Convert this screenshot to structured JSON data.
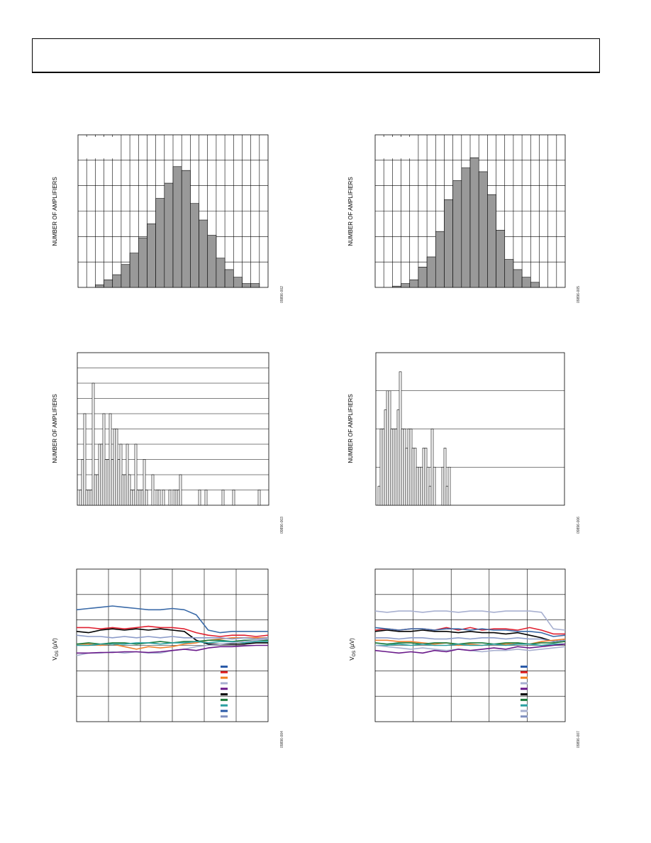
{
  "figures": {
    "hist_a": {
      "ylabel": "NUMBER OF AMPLIFIERS",
      "figure_id": "09896-002",
      "chart_data": {
        "type": "bar",
        "xlabel": "",
        "ylabel": "NUMBER OF AMPLIFIERS",
        "ylim": [
          0,
          6
        ],
        "values": [
          0,
          0.1,
          0.3,
          0.5,
          0.9,
          1.35,
          1.95,
          2.5,
          3.5,
          4.1,
          4.75,
          4.6,
          3.3,
          2.65,
          2.05,
          1.15,
          0.7,
          0.4,
          0.15,
          0.15,
          0
        ]
      }
    },
    "hist_b": {
      "ylabel": "NUMBER OF AMPLIFIERS",
      "figure_id": "09896-005",
      "chart_data": {
        "type": "bar",
        "xlabel": "",
        "ylabel": "NUMBER OF AMPLIFIERS",
        "ylim": [
          0,
          6
        ],
        "values": [
          0,
          0.05,
          0.15,
          0.3,
          0.8,
          1.2,
          2.2,
          3.45,
          4.2,
          4.7,
          5.1,
          4.55,
          3.65,
          2.25,
          1.1,
          0.7,
          0.4,
          0.2,
          0,
          0,
          0
        ]
      }
    },
    "hist_c": {
      "ylabel": "NUMBER OF AMPLIFIERS",
      "figure_id": "09896-003",
      "chart_data": {
        "type": "bar",
        "xlabel": "",
        "ylabel": "NUMBER OF AMPLIFIERS",
        "ylim": [
          0,
          10
        ],
        "values": [
          1,
          3,
          6,
          1,
          1,
          1,
          8,
          2,
          2,
          4,
          4,
          6,
          3,
          3,
          6,
          3,
          5,
          5,
          3,
          4,
          2,
          2,
          4,
          2,
          1,
          1,
          4,
          1,
          1,
          1,
          3,
          1,
          0,
          0,
          2,
          0,
          1,
          1,
          0,
          1,
          0,
          0,
          1,
          0,
          1,
          1,
          1,
          2,
          0,
          0,
          0,
          0,
          0,
          0,
          0,
          0,
          1,
          0,
          0,
          1,
          0,
          0,
          0,
          0,
          0,
          0,
          0,
          1,
          0,
          0,
          0,
          0,
          1,
          0,
          0,
          0,
          0,
          0,
          0,
          0,
          0,
          0,
          0,
          0,
          1
        ]
      }
    },
    "hist_d": {
      "ylabel": "NUMBER OF AMPLIFIERS",
      "figure_id": "09896-006",
      "chart_data": {
        "type": "bar",
        "xlabel": "",
        "ylabel": "NUMBER OF AMPLIFIERS",
        "ylim": [
          0,
          4
        ],
        "values": [
          0.5,
          2,
          2,
          2.5,
          3,
          3,
          2,
          2,
          2,
          2.5,
          3.5,
          2,
          2,
          1.5,
          2,
          2,
          1.5,
          1.5,
          1,
          1,
          1,
          1.5,
          1.5,
          1,
          0.5,
          2,
          1,
          0,
          0,
          0,
          1,
          1.5,
          0.5,
          1
        ]
      }
    },
    "drift_a": {
      "ylabel": "V",
      "ylabel_sub": "OS",
      "ylabel_unit": " (µV)",
      "figure_id": "09896-004",
      "legend_colors": [
        "#2a5aa8",
        "#e02020",
        "#f08020",
        "#a8b0d0",
        "#6a1a8a",
        "#000000",
        "#1a7a3a",
        "#2aa0a0",
        "#2a5aa8",
        "#8090c0"
      ],
      "chart_data": {
        "type": "line",
        "xlabel": "",
        "ylabel": "VOS (µV)",
        "ylim": [
          0,
          6
        ],
        "series": [
          {
            "color": "#3a6aa8",
            "values": [
              4.4,
              4.45,
              4.5,
              4.55,
              4.5,
              4.45,
              4.4,
              4.4,
              4.45,
              4.4,
              4.2,
              3.6,
              3.5,
              3.55,
              3.55,
              3.55,
              3.55
            ]
          },
          {
            "color": "#e02030",
            "values": [
              3.7,
              3.7,
              3.65,
              3.7,
              3.65,
              3.7,
              3.75,
              3.7,
              3.7,
              3.65,
              3.5,
              3.4,
              3.35,
              3.4,
              3.4,
              3.35,
              3.4
            ]
          },
          {
            "color": "#000000",
            "values": [
              3.55,
              3.5,
              3.6,
              3.65,
              3.6,
              3.65,
              3.6,
              3.65,
              3.6,
              3.55,
              3.2,
              3.05,
              3.05,
              3.05,
              3.05,
              3.1,
              3.1
            ]
          },
          {
            "color": "#f08030",
            "values": [
              3.05,
              3.05,
              3.0,
              3.05,
              2.95,
              2.85,
              2.95,
              2.9,
              2.95,
              3.05,
              3.1,
              3.2,
              3.25,
              3.3,
              3.3,
              3.3,
              3.3
            ]
          },
          {
            "color": "#8a9ac8",
            "values": [
              3.4,
              3.35,
              3.35,
              3.3,
              3.35,
              3.3,
              3.35,
              3.3,
              3.35,
              3.3,
              3.3,
              3.3,
              3.3,
              3.25,
              3.3,
              3.25,
              3.3
            ]
          },
          {
            "color": "#1a7a3a",
            "values": [
              3.05,
              3.1,
              3.05,
              3.1,
              3.1,
              3.05,
              3.1,
              3.15,
              3.1,
              3.15,
              3.15,
              3.2,
              3.2,
              3.15,
              3.2,
              3.2,
              3.2
            ]
          },
          {
            "color": "#2aa0a0",
            "values": [
              3.0,
              3.0,
              3.05,
              3.05,
              3.05,
              3.1,
              3.1,
              3.05,
              3.1,
              3.1,
              3.15,
              3.1,
              3.15,
              3.15,
              3.1,
              3.15,
              3.15
            ]
          },
          {
            "color": "#a8b0d0",
            "values": [
              2.6,
              2.7,
              2.7,
              2.75,
              2.7,
              2.75,
              2.7,
              2.7,
              2.8,
              2.85,
              2.95,
              3.0,
              3.05,
              3.1,
              3.15,
              3.2,
              3.25
            ]
          },
          {
            "color": "#6a1a8a",
            "values": [
              2.7,
              2.7,
              2.72,
              2.72,
              2.75,
              2.75,
              2.72,
              2.75,
              2.8,
              2.85,
              2.8,
              2.9,
              2.95,
              2.95,
              2.98,
              3.0,
              3.0
            ]
          }
        ]
      }
    },
    "drift_b": {
      "ylabel": "V",
      "ylabel_sub": "OS",
      "ylabel_unit": " (µV)",
      "figure_id": "09896-007",
      "legend_colors": [
        "#2a5aa8",
        "#e02020",
        "#f08020",
        "#a8b0d0",
        "#6a1a8a",
        "#000000",
        "#1a7a3a",
        "#2aa0a0",
        "#a8b0d0",
        "#8090c0"
      ],
      "chart_data": {
        "type": "line",
        "xlabel": "",
        "ylabel": "VOS (µV)",
        "ylim": [
          0,
          6
        ],
        "series": [
          {
            "color": "#a8b0d0",
            "values": [
              4.35,
              4.3,
              4.35,
              4.35,
              4.3,
              4.35,
              4.35,
              4.3,
              4.35,
              4.35,
              4.3,
              4.35,
              4.35,
              4.35,
              4.3,
              3.65,
              3.6
            ]
          },
          {
            "color": "#e02030",
            "values": [
              3.6,
              3.65,
              3.6,
              3.65,
              3.65,
              3.6,
              3.7,
              3.6,
              3.7,
              3.6,
              3.65,
              3.65,
              3.6,
              3.7,
              3.6,
              3.45,
              3.45
            ]
          },
          {
            "color": "#000000",
            "values": [
              3.55,
              3.6,
              3.55,
              3.55,
              3.6,
              3.55,
              3.55,
              3.5,
              3.55,
              3.5,
              3.5,
              3.45,
              3.5,
              3.4,
              3.3,
              3.15,
              3.2
            ]
          },
          {
            "color": "#3a6aa8",
            "values": [
              3.7,
              3.65,
              3.6,
              3.65,
              3.65,
              3.6,
              3.65,
              3.65,
              3.6,
              3.65,
              3.6,
              3.6,
              3.55,
              3.55,
              3.5,
              3.35,
              3.4
            ]
          },
          {
            "color": "#8a9ac8",
            "values": [
              3.3,
              3.3,
              3.25,
              3.3,
              3.3,
              3.25,
              3.25,
              3.3,
              3.25,
              3.3,
              3.3,
              3.25,
              3.3,
              3.25,
              3.25,
              3.15,
              3.2
            ]
          },
          {
            "color": "#f08030",
            "values": [
              3.2,
              3.2,
              3.15,
              3.15,
              3.1,
              3.05,
              3.1,
              3.0,
              3.05,
              3.0,
              3.05,
              3.05,
              3.1,
              3.05,
              3.15,
              3.2,
              3.25
            ]
          },
          {
            "color": "#1a7a3a",
            "values": [
              3.1,
              3.05,
              3.1,
              3.1,
              3.05,
              3.1,
              3.1,
              3.05,
              3.1,
              3.1,
              3.05,
              3.1,
              3.1,
              3.05,
              3.1,
              3.1,
              3.15
            ]
          },
          {
            "color": "#2aa0a0",
            "values": [
              3.0,
              3.0,
              3.05,
              3.0,
              3.05,
              3.0,
              3.0,
              3.05,
              3.0,
              3.0,
              3.05,
              3.0,
              3.05,
              3.05,
              3.0,
              3.05,
              3.05
            ]
          },
          {
            "color": "#a8b0d0",
            "values": [
              3.0,
              2.95,
              2.9,
              2.85,
              2.9,
              2.85,
              2.8,
              2.85,
              2.8,
              2.75,
              2.8,
              2.8,
              2.85,
              2.8,
              2.85,
              2.9,
              2.95
            ]
          },
          {
            "color": "#6a1a8a",
            "values": [
              2.8,
              2.75,
              2.7,
              2.75,
              2.7,
              2.8,
              2.75,
              2.85,
              2.8,
              2.85,
              2.9,
              2.85,
              2.95,
              2.9,
              2.95,
              3.0,
              3.05
            ]
          }
        ]
      }
    }
  }
}
